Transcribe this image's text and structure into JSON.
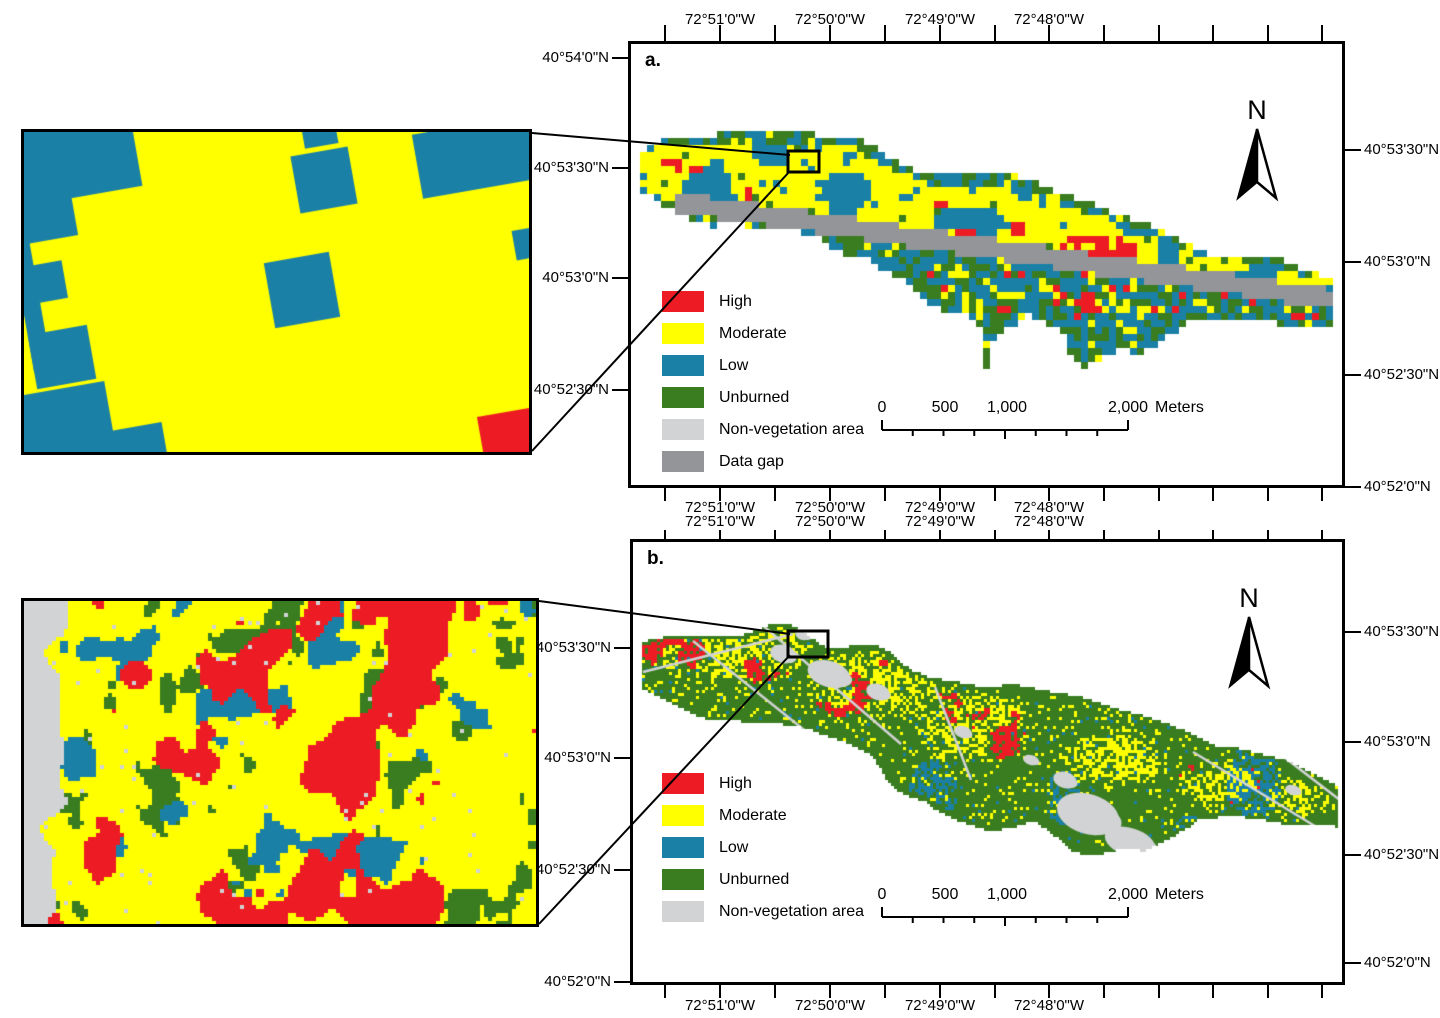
{
  "panels": [
    {
      "label": "a.",
      "north_label": "N",
      "lon_labels": [
        "72°51'0\"W",
        "72°50'0\"W",
        "72°49'0\"W",
        "72°48'0\"W"
      ],
      "lat_labels_left": [
        "40°54'0\"N",
        "40°53'30\"N",
        "40°53'0\"N",
        "40°52'30\"N"
      ],
      "lat_labels_right": [
        "40°53'30\"N",
        "40°53'0\"N",
        "40°52'30\"N",
        "40°52'0\"N"
      ],
      "legend": {
        "items": [
          {
            "label": "High",
            "color": "#ED1C24"
          },
          {
            "label": "Moderate",
            "color": "#FFFF00"
          },
          {
            "label": "Low",
            "color": "#1B80A6"
          },
          {
            "label": "Unburned",
            "color": "#3A7D21"
          },
          {
            "label": "Non-vegetation area",
            "color": "#D1D3D4"
          },
          {
            "label": "Data gap",
            "color": "#939598"
          }
        ]
      },
      "scalebar": {
        "labels": [
          "0",
          "500",
          "1,000",
          "2,000"
        ],
        "unit": "Meters"
      }
    },
    {
      "label": "b.",
      "north_label": "N",
      "lon_labels": [
        "72°51'0\"W",
        "72°50'0\"W",
        "72°49'0\"W",
        "72°48'0\"W"
      ],
      "lat_labels_left": [
        "40°53'30\"N",
        "40°53'0\"N",
        "40°52'30\"N",
        "40°52'0\"N"
      ],
      "lat_labels_right": [
        "40°53'30\"N",
        "40°53'0\"N",
        "40°52'30\"N",
        "40°52'0\"N"
      ],
      "legend": {
        "items": [
          {
            "label": "High",
            "color": "#ED1C24"
          },
          {
            "label": "Moderate",
            "color": "#FFFF00"
          },
          {
            "label": "Low",
            "color": "#1B80A6"
          },
          {
            "label": "Unburned",
            "color": "#3A7D21"
          },
          {
            "label": "Non-vegetation area",
            "color": "#D1D3D4"
          }
        ]
      },
      "scalebar": {
        "labels": [
          "0",
          "500",
          "1,000",
          "2,000"
        ],
        "unit": "Meters"
      }
    }
  ]
}
